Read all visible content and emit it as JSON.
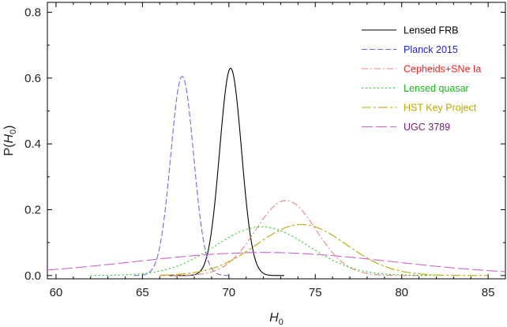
{
  "chart_data": {
    "type": "line",
    "xlabel_main": "H",
    "xlabel_sub": "0",
    "ylabel_pre": "P(",
    "ylabel_main": "H",
    "ylabel_sub": "0",
    "ylabel_post": ")",
    "xlim": [
      59.5,
      86
    ],
    "ylim": [
      -0.01,
      0.83
    ],
    "xticks": [
      60,
      65,
      70,
      75,
      80,
      85
    ],
    "xtick_labels": [
      "60",
      "65",
      "70",
      "75",
      "80",
      "85"
    ],
    "yticks": [
      0.0,
      0.2,
      0.4,
      0.6,
      0.8
    ],
    "ytick_labels": [
      "0.0",
      "0.2",
      "0.4",
      "0.6",
      "0.8"
    ],
    "grid": false,
    "legend_position": "top-right",
    "series": [
      {
        "name": "Lensed FRB",
        "mu": 70.1,
        "sigma": 0.63,
        "peak": 0.63,
        "xrange": [
          66.5,
          73.2
        ],
        "color": "#000000",
        "dash": "",
        "text_color": "#000000"
      },
      {
        "name": "Planck 2015",
        "mu": 67.3,
        "sigma": 0.66,
        "peak": 0.605,
        "xrange": [
          64.5,
          70.0
        ],
        "color": "#6b6bf0",
        "dash": "7,3",
        "text_color": "#1f1fe0"
      },
      {
        "name": "Cepheids+SNe Ia",
        "mu": 73.3,
        "sigma": 1.75,
        "peak": 0.228,
        "xrange": [
          66.0,
          81.5
        ],
        "color": "#f08080",
        "dash": "8,3,2,3",
        "text_color": "#e82020"
      },
      {
        "name": "Lensed quasar",
        "mu": 71.9,
        "sigma": 2.7,
        "peak": 0.148,
        "xrange": [
          62.0,
          82.0
        ],
        "color": "#22cc22",
        "dash": "2,3",
        "text_color": "#1bb81b"
      },
      {
        "name": "HST Key Project",
        "mu": 74.2,
        "sigma": 2.6,
        "peak": 0.155,
        "xrange": [
          66.0,
          85.0
        ],
        "color": "#b8a800",
        "dash": "12,3,3,3",
        "text_color": "#b8a800"
      },
      {
        "name": "UGC 3789",
        "mu": 72.0,
        "sigma": 7.4,
        "peak": 0.07,
        "xrange": [
          59.5,
          86.0
        ],
        "color": "#cc66cc",
        "dash": "14,4",
        "text_color": "#7a1a7a"
      }
    ]
  }
}
